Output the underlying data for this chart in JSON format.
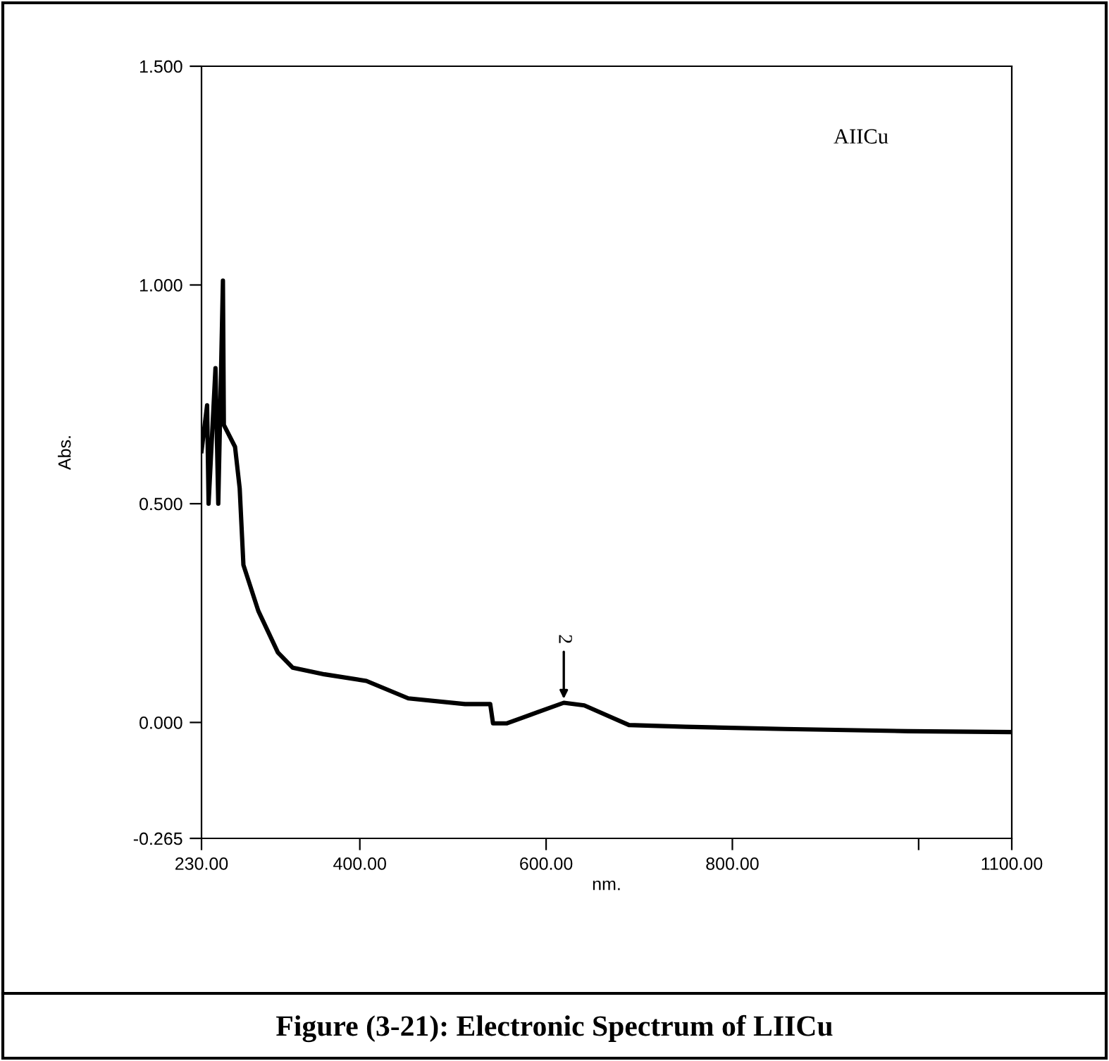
{
  "chart_data": {
    "type": "line",
    "title": "Figure (3-21): Electronic Spectrum of LIICu",
    "xlabel": "nm.",
    "ylabel": "Abs.",
    "x": [
      230,
      236,
      237.6,
      245,
      248,
      253,
      254,
      266,
      271,
      275,
      291,
      312,
      328,
      362,
      407,
      452,
      513,
      540,
      543,
      558,
      619,
      641,
      689,
      750,
      856,
      989,
      1100
    ],
    "series": [
      {
        "color": "#000000",
        "values": [
          0.62,
          0.725,
          0.5,
          0.81,
          0.5,
          1.01,
          0.68,
          0.63,
          0.535,
          0.36,
          0.255,
          0.16,
          0.125,
          0.11,
          0.095,
          0.055,
          0.042,
          0.042,
          -0.002,
          -0.002,
          0.045,
          0.039,
          -0.006,
          -0.01,
          -0.015,
          -0.02,
          -0.022
        ]
      }
    ],
    "annotations": [
      {
        "text": "2",
        "x": 619,
        "y": 0.045
      },
      "AIICu"
    ],
    "xlim": [
      230,
      1100
    ],
    "ylim": [
      -0.265,
      1.5
    ],
    "xticks": [
      {
        "value": 230,
        "label": "230.00"
      },
      {
        "value": 400,
        "label": "400.00"
      },
      {
        "value": 600,
        "label": "600.00"
      },
      {
        "value": 800,
        "label": "800.00"
      },
      {
        "value": 1000,
        "label": null
      },
      {
        "value": 1100,
        "label": "1100.00"
      }
    ],
    "yticks": [
      {
        "value": -0.265,
        "label": "-0.265"
      },
      {
        "value": 0,
        "label": "0.000"
      },
      {
        "value": 0.5,
        "label": "0.500"
      },
      {
        "value": 1,
        "label": "1.000"
      },
      {
        "value": 1.5,
        "label": "1.500"
      }
    ],
    "grid": false,
    "legend": false,
    "marker": "none",
    "line_style": "solid"
  }
}
